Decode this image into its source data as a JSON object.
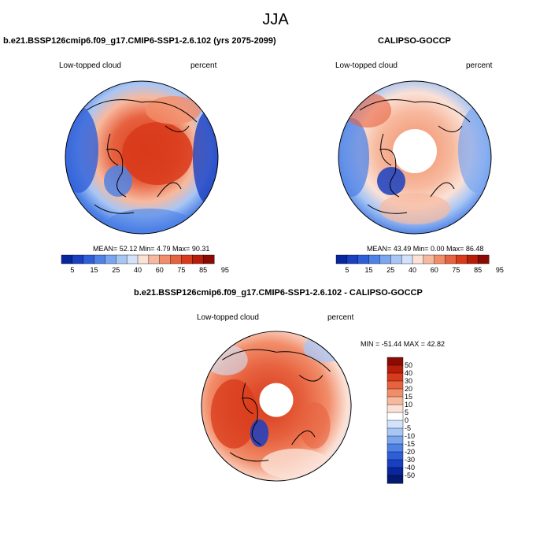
{
  "figure_title": "JJA",
  "panels": [
    {
      "id": "model",
      "title": "b.e21.BSSP126cmip6.f09_g17.CMIP6-SSP1-2.6.102 (yrs 2075-2099)",
      "left_label": "Low-topped cloud",
      "right_label": "percent",
      "stats": "MEAN=  52.12  Min=   4.79  Max=  90.31",
      "colorbar_ticks": [
        "5",
        "15",
        "25",
        "40",
        "60",
        "75",
        "85",
        "95"
      ]
    },
    {
      "id": "obs",
      "title": "CALIPSO-GOCCP",
      "left_label": "Low-topped cloud",
      "right_label": "percent",
      "stats": "MEAN=  43.49  Min=   0.00  Max=  86.48",
      "colorbar_ticks": [
        "5",
        "15",
        "25",
        "40",
        "60",
        "75",
        "85",
        "95"
      ]
    },
    {
      "id": "diff",
      "title": "b.e21.BSSP126cmip6.f09_g17.CMIP6-SSP1-2.6.102 - CALIPSO-GOCCP",
      "left_label": "Low-topped cloud",
      "right_label": "percent",
      "stats": "MIN = -51.44 MAX =  42.82",
      "colorbar_ticks": [
        "50",
        "40",
        "30",
        "20",
        "15",
        "10",
        "5",
        "0",
        "-5",
        "-10",
        "-15",
        "-20",
        "-30",
        "-40",
        "-50"
      ]
    }
  ],
  "colors": {
    "abs_scale": [
      "#08279c",
      "#1a3fc0",
      "#2f5fd8",
      "#4f82e6",
      "#7aa5ef",
      "#a8c6f5",
      "#d2e2fa",
      "#fbe1d6",
      "#f7b99e",
      "#f28d6a",
      "#e7623f",
      "#d83a1a",
      "#b81d0a",
      "#8c0a04"
    ],
    "diff_scale": [
      "#8c0a04",
      "#b81d0a",
      "#d83a1a",
      "#e7623f",
      "#f28d6a",
      "#f7b99e",
      "#fbe1d6",
      "#ffffff",
      "#d2e2fa",
      "#a8c6f5",
      "#7aa5ef",
      "#4f82e6",
      "#2f5fd8",
      "#1a3fc0",
      "#08279c",
      "#041a70"
    ]
  }
}
